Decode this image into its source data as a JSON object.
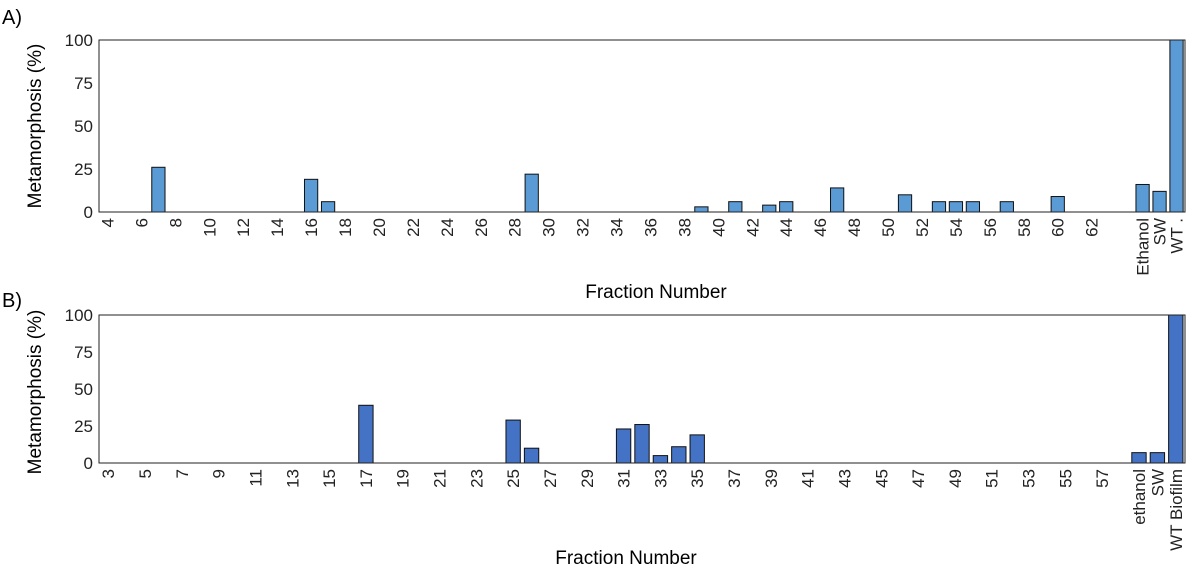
{
  "chart_data": [
    {
      "type": "bar",
      "panel_label": "A)",
      "xlabel": "Fraction Number",
      "ylabel": "Metamorphosis (%)",
      "ylim": [
        0,
        100
      ],
      "yticks": [
        "0",
        "25",
        "50",
        "75",
        "100"
      ],
      "grid": false,
      "bar_color": "#5b9bd5",
      "categories": [
        "4",
        "5",
        "6",
        "7",
        "8",
        "9",
        "10",
        "11",
        "12",
        "13",
        "14",
        "15",
        "16",
        "17",
        "18",
        "19",
        "20",
        "21",
        "22",
        "23",
        "24",
        "25",
        "26",
        "27",
        "28",
        "29",
        "30",
        "31",
        "32",
        "33",
        "34",
        "35",
        "36",
        "37",
        "38",
        "39",
        "40",
        "41",
        "42",
        "43",
        "44",
        "45",
        "46",
        "47",
        "48",
        "49",
        "50",
        "51",
        "52",
        "53",
        "54",
        "55",
        "56",
        "57",
        "58",
        "59",
        "60",
        "61",
        "62",
        "63",
        "64",
        "Ethanol",
        "SW",
        "WT ."
      ],
      "tick_labels": [
        "4",
        "",
        "6",
        "",
        "8",
        "",
        "10",
        "",
        "12",
        "",
        "14",
        "",
        "16",
        "",
        "18",
        "",
        "20",
        "",
        "22",
        "",
        "24",
        "",
        "26",
        "",
        "28",
        "",
        "30",
        "",
        "32",
        "",
        "34",
        "",
        "36",
        "",
        "38",
        "",
        "40",
        "",
        "42",
        "",
        "44",
        "",
        "46",
        "",
        "48",
        "",
        "50",
        "",
        "52",
        "",
        "54",
        "",
        "56",
        "",
        "58",
        "",
        "60",
        "",
        "62",
        "",
        "",
        "Ethanol",
        "SW",
        "WT ."
      ],
      "values": [
        0,
        0,
        0,
        26,
        0,
        0,
        0,
        0,
        0,
        0,
        0,
        0,
        19,
        6,
        0,
        0,
        0,
        0,
        0,
        0,
        0,
        0,
        0,
        0,
        0,
        22,
        0,
        0,
        0,
        0,
        0,
        0,
        0,
        0,
        0,
        3,
        0,
        6,
        0,
        4,
        6,
        0,
        0,
        14,
        0,
        0,
        0,
        10,
        0,
        6,
        6,
        6,
        0,
        6,
        0,
        0,
        9,
        0,
        0,
        0,
        0,
        16,
        12,
        100
      ]
    },
    {
      "type": "bar",
      "panel_label": "B)",
      "xlabel": "Fraction Number",
      "ylabel": "Metamorphosis (%)",
      "ylim": [
        0,
        100
      ],
      "yticks": [
        "0",
        "25",
        "50",
        "75",
        "100"
      ],
      "grid": false,
      "bar_color": "#4472c4",
      "categories": [
        "3",
        "4",
        "5",
        "6",
        "7",
        "8",
        "9",
        "10",
        "11",
        "12",
        "13",
        "14",
        "15",
        "16",
        "17",
        "18",
        "19",
        "20",
        "21",
        "22",
        "23",
        "24",
        "25",
        "26",
        "27",
        "28",
        "29",
        "30",
        "31",
        "32",
        "33",
        "34",
        "35",
        "36",
        "37",
        "38",
        "39",
        "40",
        "41",
        "42",
        "43",
        "44",
        "45",
        "46",
        "47",
        "48",
        "49",
        "50",
        "51",
        "52",
        "53",
        "54",
        "55",
        "56",
        "57",
        "58",
        "ethanol",
        "SW",
        "WT Biofilm"
      ],
      "tick_labels": [
        "3",
        "",
        "5",
        "",
        "7",
        "",
        "9",
        "",
        "11",
        "",
        "13",
        "",
        "15",
        "",
        "17",
        "",
        "19",
        "",
        "21",
        "",
        "23",
        "",
        "25",
        "",
        "27",
        "",
        "29",
        "",
        "31",
        "",
        "33",
        "",
        "35",
        "",
        "37",
        "",
        "39",
        "",
        "41",
        "",
        "43",
        "",
        "45",
        "",
        "47",
        "",
        "49",
        "",
        "51",
        "",
        "53",
        "",
        "55",
        "",
        "57",
        "",
        "ethanol",
        "SW",
        "WT Biofilm"
      ],
      "values": [
        0,
        0,
        0,
        0,
        0,
        0,
        0,
        0,
        0,
        0,
        0,
        0,
        0,
        0,
        39,
        0,
        0,
        0,
        0,
        0,
        0,
        0,
        29,
        10,
        0,
        0,
        0,
        0,
        23,
        26,
        5,
        11,
        19,
        0,
        0,
        0,
        0,
        0,
        0,
        0,
        0,
        0,
        0,
        0,
        0,
        0,
        0,
        0,
        0,
        0,
        0,
        0,
        0,
        0,
        0,
        0,
        7,
        7,
        100
      ]
    }
  ]
}
